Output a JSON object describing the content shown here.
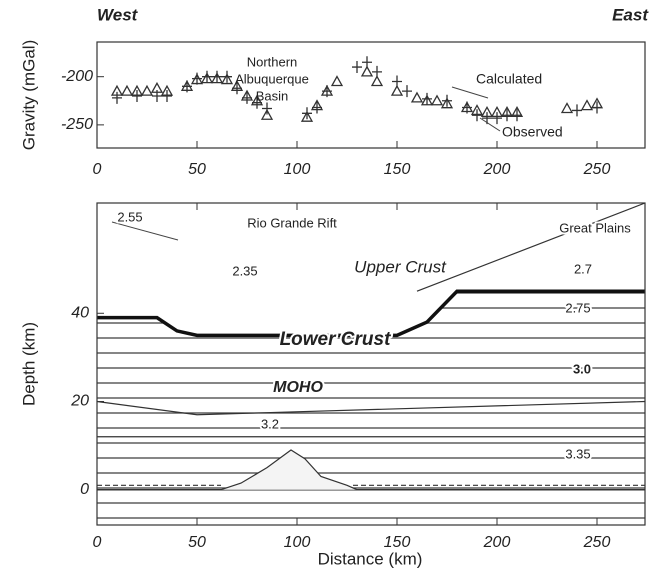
{
  "chart_data": [
    {
      "type": "scatter",
      "annotations": [
        "West",
        "East",
        "Northern",
        "Albuquerque",
        "Basin"
      ],
      "ylabel": "Gravity (mGal)",
      "xlim": [
        0,
        274
      ],
      "ylim": [
        -274,
        -164
      ],
      "xticks": [
        0,
        50,
        100,
        150,
        200,
        250
      ],
      "yticks": [
        -200,
        -250
      ],
      "series": [
        {
          "name": "Calculated",
          "marker": "triangle",
          "color": "#333",
          "x": [
            10,
            15,
            20,
            25,
            30,
            35,
            45,
            50,
            55,
            60,
            65,
            70,
            75,
            80,
            85,
            105,
            110,
            115,
            120,
            135,
            140,
            150,
            160,
            165,
            170,
            175,
            185,
            190,
            195,
            200,
            205,
            210,
            235,
            245,
            250
          ],
          "values": [
            -215,
            -215,
            -215,
            -215,
            -212,
            -215,
            -210,
            -203,
            -202,
            -202,
            -203,
            -210,
            -220,
            -225,
            -240,
            -242,
            -230,
            -215,
            -205,
            -195,
            -205,
            -215,
            -222,
            -225,
            -225,
            -228,
            -232,
            -235,
            -237,
            -237,
            -237,
            -237,
            -233,
            -230,
            -228
          ]
        },
        {
          "name": "Observed",
          "marker": "plus",
          "color": "#333",
          "x": [
            10,
            20,
            30,
            35,
            45,
            50,
            55,
            60,
            65,
            70,
            75,
            80,
            85,
            105,
            110,
            115,
            130,
            135,
            140,
            150,
            155,
            165,
            175,
            185,
            190,
            195,
            200,
            205,
            210,
            240,
            250
          ],
          "values": [
            -222,
            -220,
            -220,
            -220,
            -210,
            -202,
            -200,
            -200,
            -200,
            -212,
            -222,
            -227,
            -233,
            -238,
            -232,
            -215,
            -190,
            -185,
            -195,
            -205,
            -215,
            -223,
            -225,
            -232,
            -240,
            -243,
            -243,
            -240,
            -240,
            -235,
            -232
          ]
        }
      ]
    },
    {
      "type": "cross-section",
      "xlabel": "Distance (km)",
      "ylabel": "Depth (km)",
      "xlim": [
        0,
        274
      ],
      "ylim": [
        -8,
        65
      ],
      "xticks": [
        0,
        50,
        100,
        150,
        200,
        250
      ],
      "yticks": [
        0,
        20,
        40
      ],
      "annotations": [
        "2.55",
        "Rio Grande Rift",
        "Great Plains",
        "2.35",
        "Upper Crust",
        "2.7",
        "2.75",
        "Lower Crust",
        "3.0",
        "MOHO",
        "3.2",
        "3.35"
      ],
      "surface": {
        "x": [
          0,
          274
        ],
        "y": [
          0,
          0
        ]
      },
      "sediment_base": [
        {
          "x": [
            0,
            62
          ],
          "y": [
            1,
            1
          ]
        },
        {
          "x": [
            128,
            274
          ],
          "y": [
            1,
            1
          ]
        }
      ],
      "rift": {
        "x": [
          62,
          72,
          85,
          97,
          104,
          112,
          125,
          130
        ],
        "y": [
          0,
          1.5,
          5,
          9,
          7,
          3,
          1,
          0
        ]
      },
      "crust_interface": {
        "x": [
          0,
          274
        ],
        "y": [
          12,
          12
        ]
      },
      "lower_crust_top": {
        "x": [
          0,
          50,
          274
        ],
        "y": [
          20,
          17,
          20
        ]
      },
      "moho": {
        "x": [
          0,
          30,
          40,
          50,
          150,
          165,
          180,
          274
        ],
        "y": [
          39,
          39,
          36,
          35,
          35,
          38,
          45,
          45
        ]
      },
      "slab": {
        "x": [
          160,
          274
        ],
        "y": [
          45,
          65
        ]
      }
    }
  ]
}
